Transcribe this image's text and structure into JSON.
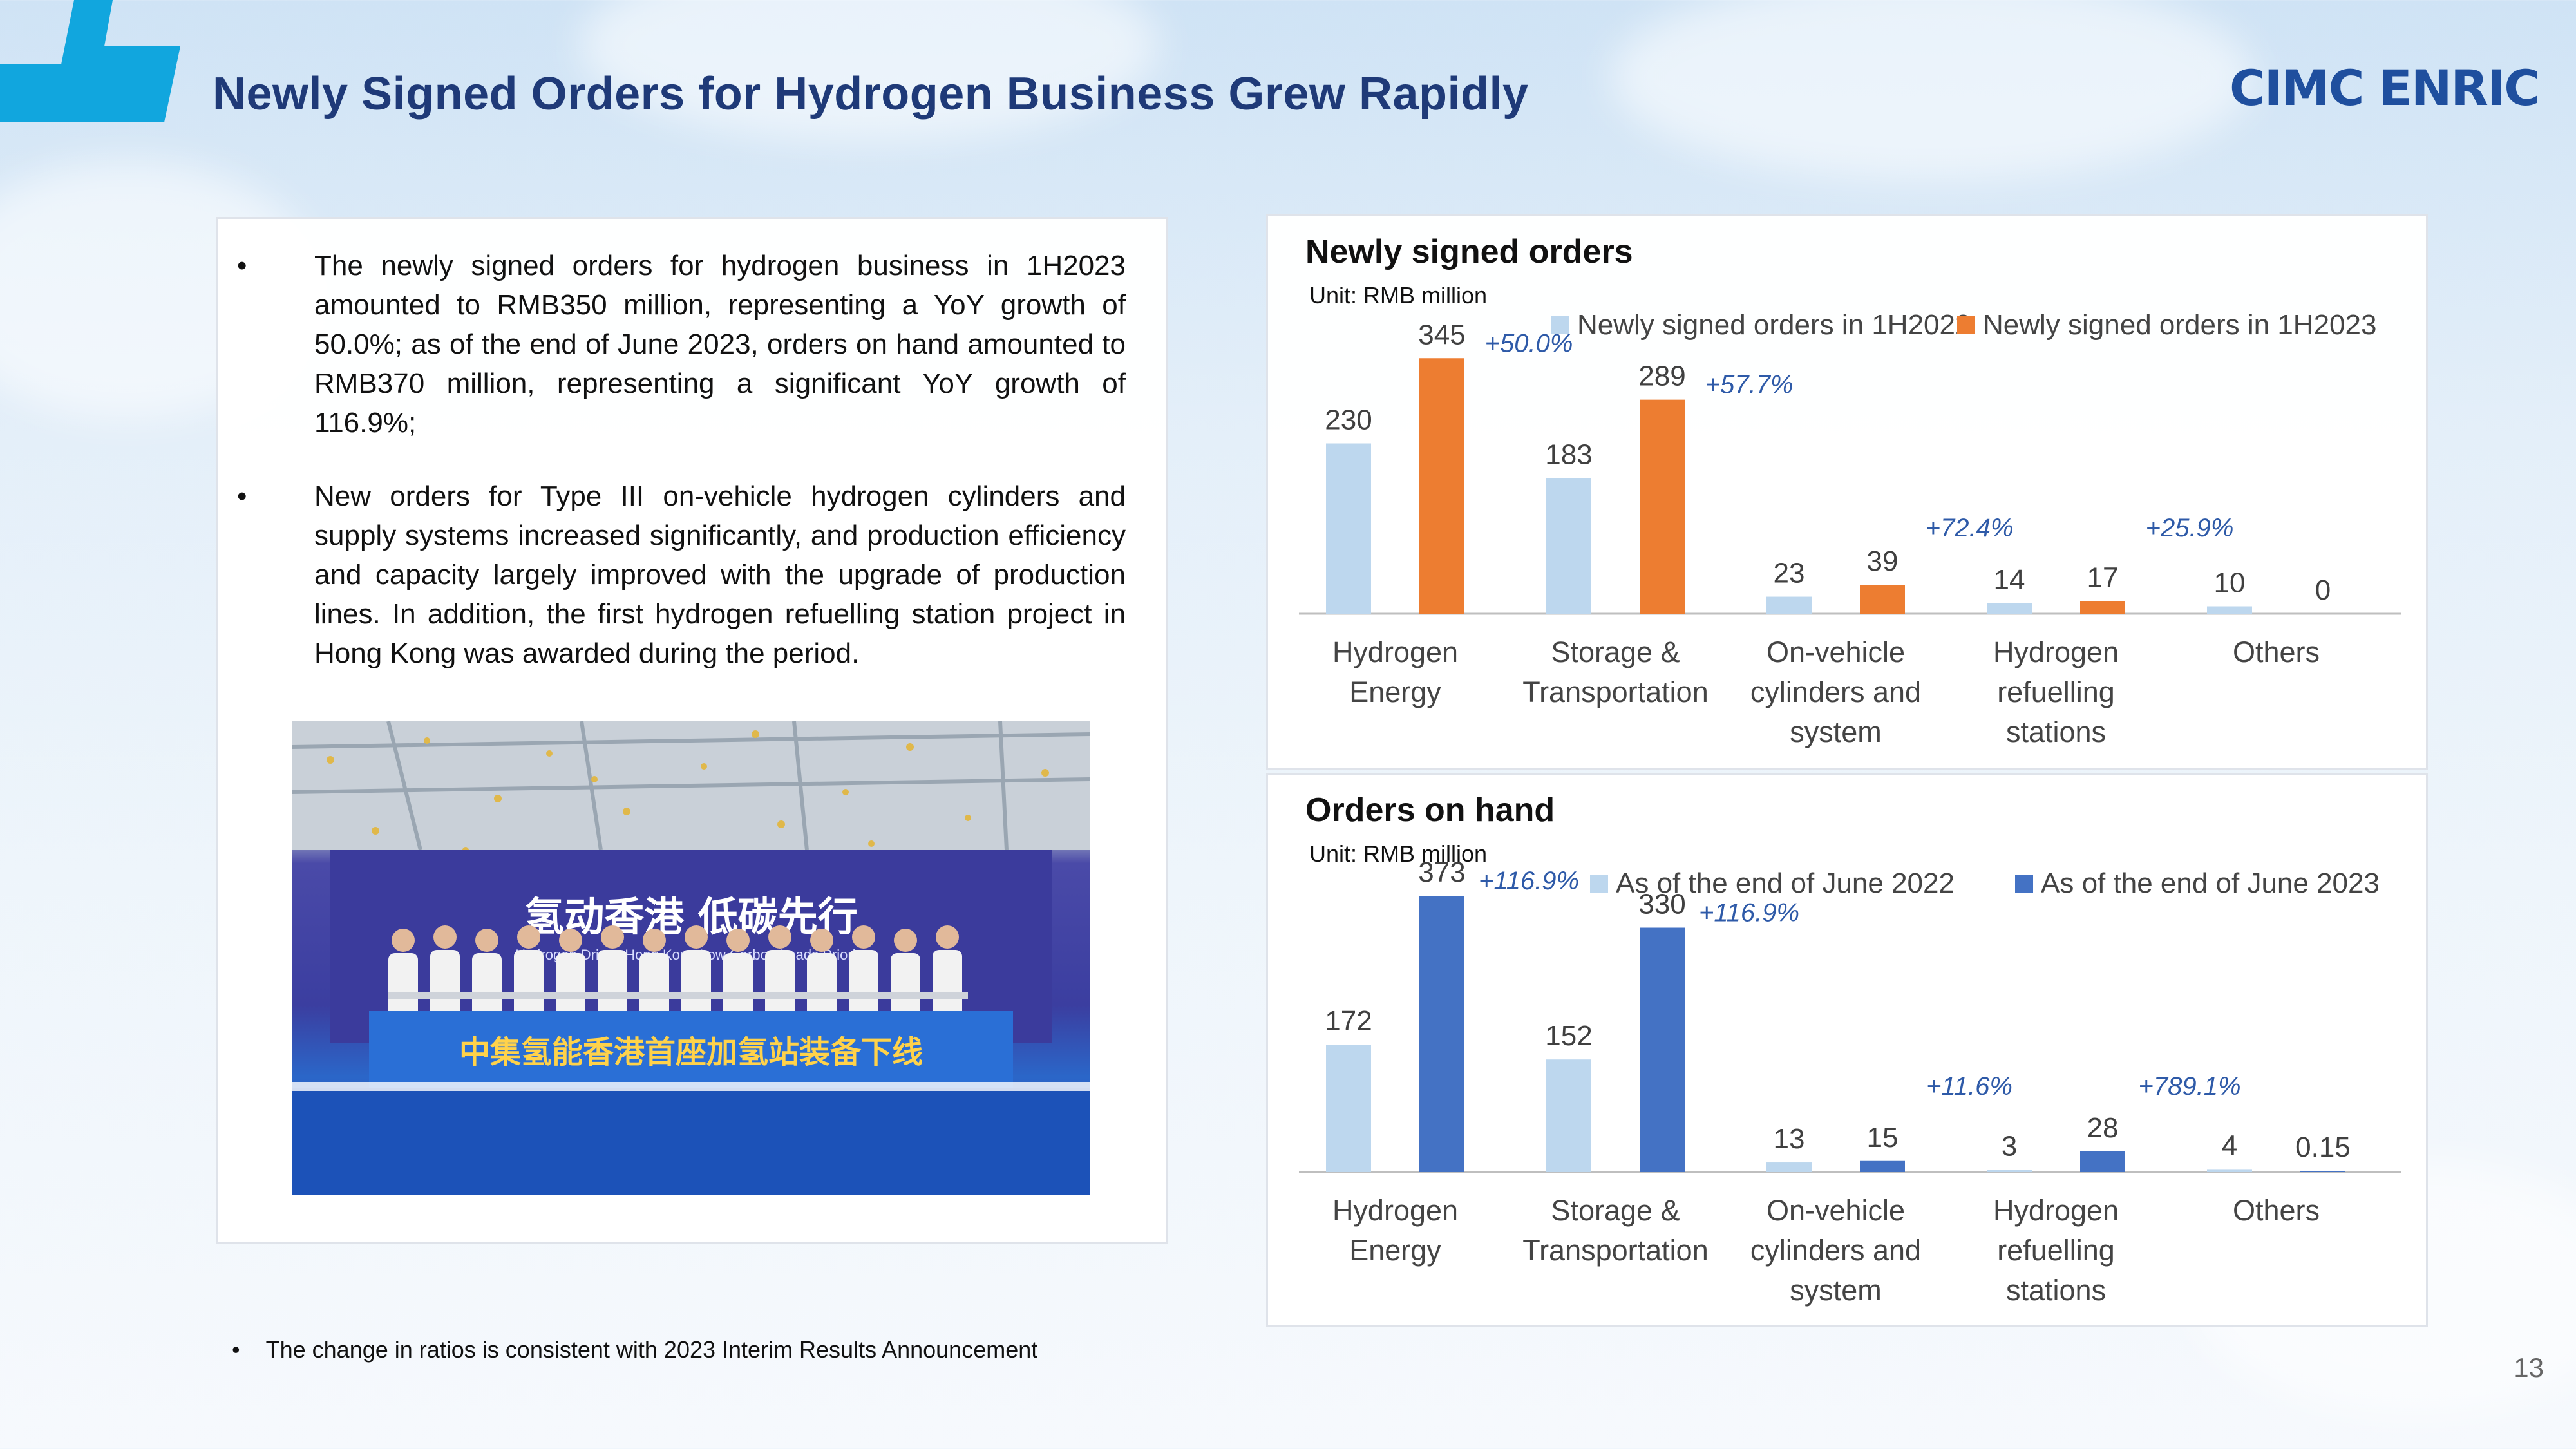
{
  "slide": {
    "title": "Newly Signed Orders for Hydrogen Business Grew Rapidly",
    "logo_text": "CIMC ENRIC",
    "page_number": "13",
    "accent_color": "#11a6de",
    "title_color": "#1f3a78"
  },
  "text_panel": {
    "bullets": [
      "The newly signed orders for hydrogen business in 1H2023 amounted to RMB350 million, representing a YoY growth of 50.0%; as of the end of June 2023, orders on hand amounted to RMB370 million, representing a significant YoY growth of 116.9%;",
      "New orders for Type III on-vehicle hydrogen cylinders and supply systems increased significantly, and production efficiency and capacity largely improved with the upgrade of production lines. In addition, the first hydrogen refuelling station project in Hong Kong was awarded during the period."
    ],
    "bullet_symbol": "•",
    "photo": {
      "banner_text": "氢动香港 低碳先行",
      "banner_subtitle": "Hydrogen Drives Hong Kong Low Carbon Leads Priority",
      "stage_text": "中集氢能香港首座加氢站装备下线"
    }
  },
  "footnote": "The change in ratios is consistent with 2023 Interim Results Announcement",
  "chart_data": [
    {
      "type": "bar",
      "title": "Newly signed orders",
      "subtitle": "Unit: RMB million",
      "categories": [
        [
          "Hydrogen",
          "Energy"
        ],
        [
          "Storage &",
          "Transportation"
        ],
        [
          "On-vehicle",
          "cylinders and",
          "system"
        ],
        [
          "Hydrogen",
          "refuelling",
          "stations"
        ],
        [
          "Others"
        ]
      ],
      "series": [
        {
          "name": "Newly signed orders in 1H2022",
          "color": "#bdd7ee",
          "values": [
            230,
            183,
            23,
            14,
            10
          ],
          "labels": [
            "230",
            "183",
            "23",
            "14",
            "10"
          ]
        },
        {
          "name": "Newly signed orders in 1H2023",
          "color": "#ed7d31",
          "values": [
            345,
            289,
            39,
            17,
            0
          ],
          "labels": [
            "345",
            "289",
            "39",
            "17",
            "0"
          ]
        }
      ],
      "growth_labels": [
        "+50.0%",
        "+57.7%",
        "+72.4%",
        "+25.9%",
        ""
      ],
      "ylim": [
        0,
        400
      ],
      "legend": "top",
      "grid": false
    },
    {
      "type": "bar",
      "title": "Orders on hand",
      "subtitle": "Unit: RMB million",
      "categories": [
        [
          "Hydrogen",
          "Energy"
        ],
        [
          "Storage &",
          "Transportation"
        ],
        [
          "On-vehicle",
          "cylinders and",
          "system"
        ],
        [
          "Hydrogen",
          "refuelling",
          "stations"
        ],
        [
          "Others"
        ]
      ],
      "series": [
        {
          "name": "As of the end of June 2022",
          "color": "#bdd7ee",
          "values": [
            172,
            152,
            13,
            3,
            4
          ],
          "labels": [
            "172",
            "152",
            "13",
            "3",
            "4"
          ]
        },
        {
          "name": "As of the end of June 2023",
          "color": "#4472c4",
          "values": [
            373,
            330,
            15,
            28,
            0.15
          ],
          "labels": [
            "373",
            "330",
            "15",
            "28",
            "0.15"
          ]
        }
      ],
      "growth_labels": [
        "+116.9%",
        "+116.9%",
        "+11.6%",
        "+789.1%",
        ""
      ],
      "ylim": [
        0,
        400
      ],
      "legend": "top",
      "grid": false
    }
  ]
}
